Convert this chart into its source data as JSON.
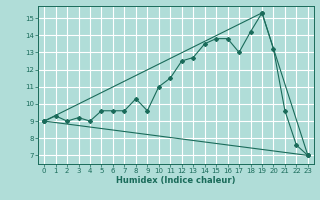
{
  "title": "",
  "xlabel": "Humidex (Indice chaleur)",
  "bg_color": "#b0ddd8",
  "line_color": "#1a6b5a",
  "grid_color": "#e8f8f5",
  "xlim": [
    -0.5,
    23.5
  ],
  "ylim": [
    6.5,
    15.7
  ],
  "xticks": [
    0,
    1,
    2,
    3,
    4,
    5,
    6,
    7,
    8,
    9,
    10,
    11,
    12,
    13,
    14,
    15,
    16,
    17,
    18,
    19,
    20,
    21,
    22,
    23
  ],
  "yticks": [
    7,
    8,
    9,
    10,
    11,
    12,
    13,
    14,
    15
  ],
  "line1_x": [
    0,
    1,
    2,
    3,
    4,
    5,
    6,
    7,
    8,
    9,
    10,
    11,
    12,
    13,
    14,
    15,
    16,
    17,
    18,
    19,
    20,
    21,
    22,
    23
  ],
  "line1_y": [
    9.0,
    9.3,
    9.0,
    9.2,
    9.0,
    9.6,
    9.6,
    9.6,
    10.3,
    9.6,
    11.0,
    11.5,
    12.5,
    12.7,
    13.5,
    13.8,
    13.8,
    13.0,
    14.2,
    15.3,
    13.2,
    9.6,
    7.6,
    7.0
  ],
  "line2_x": [
    0,
    19,
    23
  ],
  "line2_y": [
    9.0,
    15.3,
    7.0
  ],
  "line3_x": [
    0,
    23
  ],
  "line3_y": [
    9.0,
    7.0
  ]
}
